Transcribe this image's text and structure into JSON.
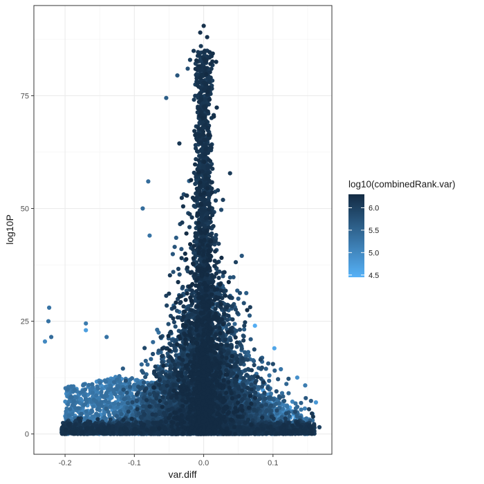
{
  "chart_data": {
    "type": "scatter",
    "title": "",
    "xlabel": "var.diff",
    "ylabel": "log10P",
    "xlim": [
      -0.245,
      0.185
    ],
    "ylim": [
      -4.5,
      95
    ],
    "x_ticks": [
      -0.2,
      -0.1,
      0.0,
      0.1
    ],
    "x_tick_labels": [
      "-0.2",
      "-0.1",
      "0.0",
      "0.1"
    ],
    "y_ticks": [
      0,
      25,
      50,
      75
    ],
    "y_tick_labels": [
      "0",
      "25",
      "50",
      "75"
    ],
    "grid": true,
    "theme": "bw",
    "legend": {
      "title": "log10(combinedRank.var)",
      "position": "right",
      "type": "colorbar",
      "range": [
        4.45,
        6.3
      ],
      "ticks": [
        4.5,
        5.0,
        5.5,
        6.0
      ],
      "tick_labels": [
        "4.5",
        "5.0",
        "5.5",
        "6.0"
      ],
      "low_color": "#56B1F7",
      "high_color": "#132B43"
    },
    "notable_points": [
      {
        "x": 0.0,
        "y": 90.5,
        "color_value": 6.2
      },
      {
        "x": -0.005,
        "y": 89,
        "color_value": 6.2
      },
      {
        "x": 0.005,
        "y": 88,
        "color_value": 6.2
      },
      {
        "x": -0.004,
        "y": 86,
        "color_value": 6.1
      },
      {
        "x": 0.001,
        "y": 84.5,
        "color_value": 6.1
      },
      {
        "x": 0.018,
        "y": 82.5,
        "color_value": 6.2
      },
      {
        "x": -0.038,
        "y": 79.5,
        "color_value": 5.7
      },
      {
        "x": -0.023,
        "y": 81,
        "color_value": 5.8
      },
      {
        "x": -0.054,
        "y": 74.5,
        "color_value": 5.6
      },
      {
        "x": -0.08,
        "y": 56,
        "color_value": 5.4
      },
      {
        "x": -0.088,
        "y": 50,
        "color_value": 5.4
      },
      {
        "x": -0.078,
        "y": 44,
        "color_value": 5.3
      },
      {
        "x": 0.055,
        "y": 39.5,
        "color_value": 5.7
      },
      {
        "x": -0.223,
        "y": 28,
        "color_value": 5.3
      },
      {
        "x": -0.224,
        "y": 25,
        "color_value": 5.3
      },
      {
        "x": -0.22,
        "y": 21.5,
        "color_value": 5.4
      },
      {
        "x": -0.229,
        "y": 20.5,
        "color_value": 5.0
      },
      {
        "x": -0.17,
        "y": 24.5,
        "color_value": 5.2
      },
      {
        "x": -0.17,
        "y": 23,
        "color_value": 4.7
      },
      {
        "x": -0.14,
        "y": 21.5,
        "color_value": 5.3
      },
      {
        "x": 0.074,
        "y": 24,
        "color_value": 4.5
      },
      {
        "x": 0.102,
        "y": 19,
        "color_value": 4.6
      },
      {
        "x": 0.1,
        "y": 15.5,
        "color_value": 5.9
      },
      {
        "x": 0.135,
        "y": 12.5,
        "color_value": 4.9
      },
      {
        "x": 0.162,
        "y": 7,
        "color_value": 4.8
      },
      {
        "x": 0.167,
        "y": 1.5,
        "color_value": 6.0
      },
      {
        "x": 0.152,
        "y": 5.5,
        "color_value": 6.0
      },
      {
        "x": -0.195,
        "y": 1,
        "color_value": 6.1
      },
      {
        "x": 0.0,
        "y": 0.2,
        "color_value": 6.2
      }
    ]
  }
}
